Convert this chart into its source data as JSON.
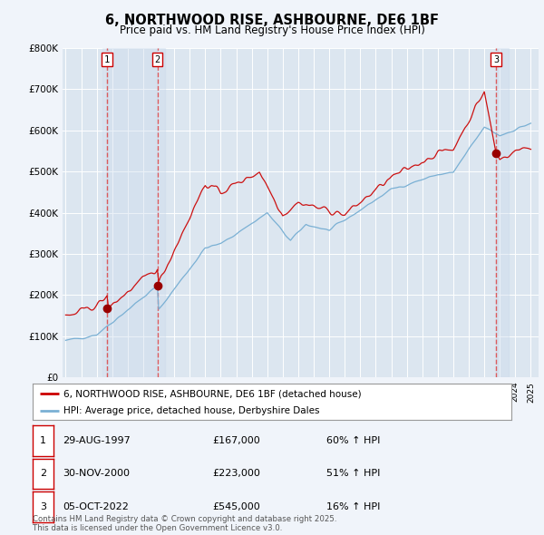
{
  "title": "6, NORTHWOOD RISE, ASHBOURNE, DE6 1BF",
  "subtitle": "Price paid vs. HM Land Registry's House Price Index (HPI)",
  "background_color": "#f0f4fa",
  "plot_bg_color": "#dce6f0",
  "ylim": [
    0,
    800000
  ],
  "yticks": [
    0,
    100000,
    200000,
    300000,
    400000,
    500000,
    600000,
    700000,
    800000
  ],
  "ytick_labels": [
    "£0",
    "£100K",
    "£200K",
    "£300K",
    "£400K",
    "£500K",
    "£600K",
    "£700K",
    "£800K"
  ],
  "legend_entries": [
    "6, NORTHWOOD RISE, ASHBOURNE, DE6 1BF (detached house)",
    "HPI: Average price, detached house, Derbyshire Dales"
  ],
  "legend_colors": [
    "#cc0000",
    "#7ab0d4"
  ],
  "purchase_labels": [
    "1",
    "2",
    "3"
  ],
  "purchase_years": [
    1997.667,
    2000.917,
    2022.75
  ],
  "purchase_prices": [
    167000,
    223000,
    545000
  ],
  "purchase_dates_display": [
    "29-AUG-1997",
    "30-NOV-2000",
    "05-OCT-2022"
  ],
  "purchase_prices_display": [
    "£167,000",
    "£223,000",
    "£545,000"
  ],
  "purchase_pcts": [
    "60% ↑ HPI",
    "51% ↑ HPI",
    "16% ↑ HPI"
  ],
  "footer": "Contains HM Land Registry data © Crown copyright and database right 2025.\nThis data is licensed under the Open Government Licence v3.0.",
  "hpi_line_color": "#7ab0d4",
  "price_line_color": "#cc1111",
  "vline_color": "#dd4444",
  "marker_color": "#990000",
  "grid_color": "#ffffff",
  "shade_color": "#c8d8ec",
  "xlim_left": 1994.8,
  "xlim_right": 2025.5
}
